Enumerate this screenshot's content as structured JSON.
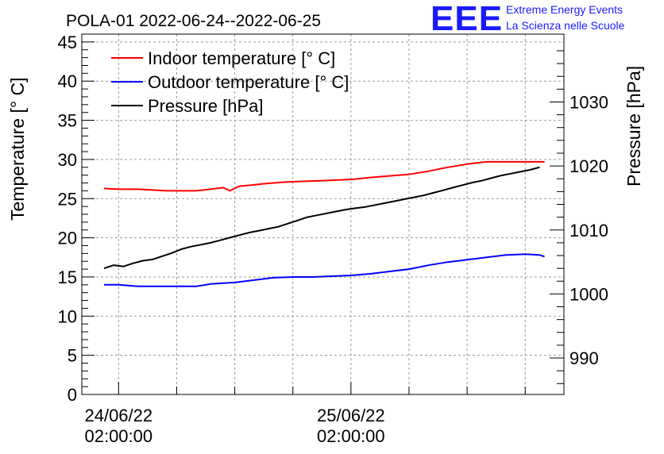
{
  "logo": {
    "letters": "EEE",
    "line1": "Extreme Energy Events",
    "line2": "La Scienza nelle Scuole",
    "color": "#1a1aff"
  },
  "chart_data": {
    "type": "line",
    "title": "POLA-01 2022-06-24--2022-06-25",
    "ylabel": "Temperature [° C]",
    "y2label": "Pressure [hPa]",
    "ylim": [
      0,
      46
    ],
    "y2lim": [
      984.3,
      1040.6
    ],
    "yticks": [
      0,
      5,
      10,
      15,
      20,
      25,
      30,
      35,
      40,
      45
    ],
    "y2ticks": [
      990,
      1000,
      1010,
      1020,
      1030
    ],
    "xlim_hours": [
      -3.8,
      46
    ],
    "x_tick_labels": [
      {
        "hour": 0,
        "date": "24/06/22",
        "time": "02:00:00"
      },
      {
        "hour": 24,
        "date": "25/06/22",
        "time": "02:00:00"
      }
    ],
    "grid": true,
    "legend_position": "top-left",
    "series": [
      {
        "name": "Indoor temperature [° C]",
        "axis": "left",
        "color": "#ff0000",
        "x": [
          -1.5,
          0,
          2,
          3.5,
          5,
          6.5,
          8,
          9.5,
          10.8,
          11.5,
          12.5,
          13.5,
          15,
          17,
          19,
          21,
          23,
          24.5,
          26,
          28,
          30,
          32,
          34,
          36,
          38,
          40,
          42,
          44
        ],
        "y": [
          26.3,
          26.2,
          26.2,
          26.1,
          26.0,
          26.0,
          26.0,
          26.2,
          26.4,
          26.0,
          26.6,
          26.7,
          26.9,
          27.1,
          27.2,
          27.3,
          27.4,
          27.5,
          27.7,
          27.9,
          28.1,
          28.5,
          29.0,
          29.4,
          29.7,
          29.7,
          29.7,
          29.7
        ]
      },
      {
        "name": "Outdoor temperature [° C]",
        "axis": "left",
        "color": "#0000ff",
        "x": [
          -1.5,
          0,
          2,
          4,
          6,
          8,
          9.5,
          12,
          14,
          16,
          18,
          20,
          22,
          24,
          26,
          28,
          30,
          32,
          34,
          36,
          38,
          40,
          42,
          43.5,
          44
        ],
        "y": [
          14.0,
          14.0,
          13.8,
          13.8,
          13.8,
          13.8,
          14.1,
          14.3,
          14.6,
          14.9,
          15.0,
          15.0,
          15.1,
          15.2,
          15.4,
          15.7,
          16.0,
          16.5,
          16.9,
          17.2,
          17.5,
          17.8,
          17.9,
          17.8,
          17.6
        ]
      },
      {
        "name": "Pressure [hPa]",
        "axis": "right",
        "color": "#000000",
        "x": [
          -1.5,
          -0.5,
          0.5,
          1.5,
          2.5,
          3.5,
          4.5,
          5.5,
          6.5,
          7.5,
          8.5,
          9.5,
          10.5,
          11.5,
          12.5,
          13.5,
          14.5,
          15.5,
          16.5,
          17.5,
          18.5,
          19.5,
          20.5,
          21.5,
          22.5,
          23.5,
          24.5,
          25.5,
          26.5,
          27.5,
          28.5,
          29.5,
          30.5,
          31.5,
          32.5,
          33.5,
          34.5,
          35.5,
          36.5,
          37.5,
          38.5,
          39.5,
          40.5,
          41.5,
          42.5,
          43.5
        ],
        "y": [
          1004.0,
          1004.5,
          1004.3,
          1004.8,
          1005.2,
          1005.4,
          1005.9,
          1006.4,
          1007.0,
          1007.4,
          1007.7,
          1008.0,
          1008.4,
          1008.8,
          1009.2,
          1009.6,
          1009.9,
          1010.2,
          1010.5,
          1011.0,
          1011.5,
          1012.0,
          1012.3,
          1012.6,
          1012.9,
          1013.2,
          1013.4,
          1013.6,
          1013.9,
          1014.2,
          1014.5,
          1014.8,
          1015.1,
          1015.4,
          1015.8,
          1016.2,
          1016.6,
          1017.0,
          1017.4,
          1017.7,
          1018.1,
          1018.5,
          1018.8,
          1019.1,
          1019.4,
          1019.8
        ]
      }
    ]
  }
}
